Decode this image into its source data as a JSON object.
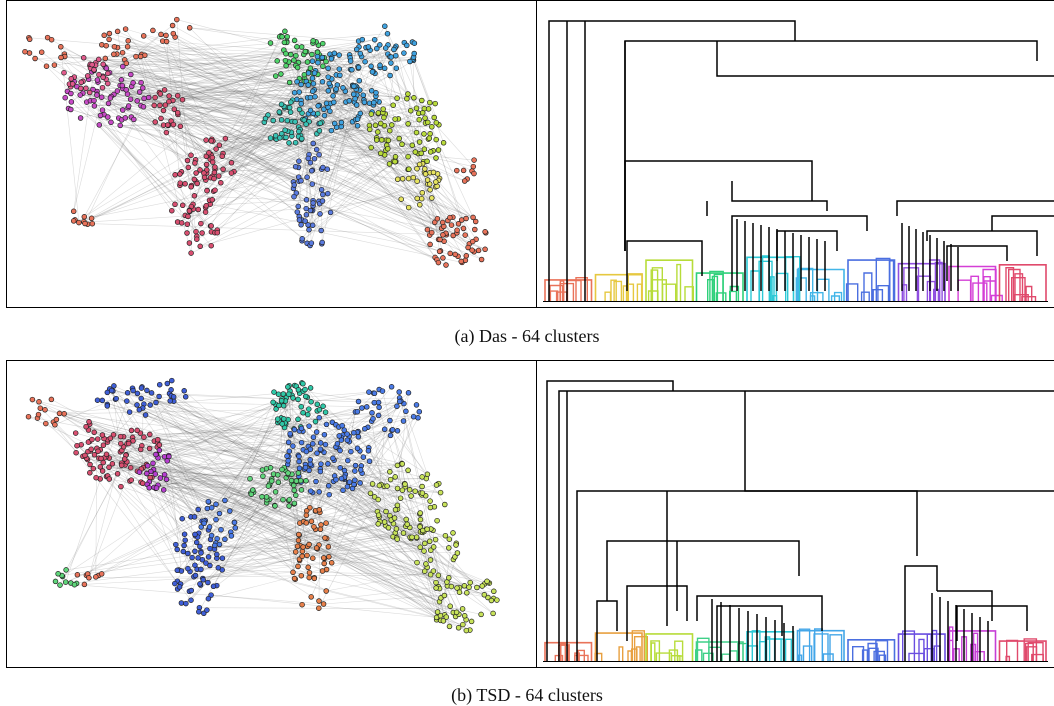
{
  "figure": {
    "panels": [
      {
        "id": "a",
        "caption": "(a)  Das - 64 clusters",
        "map_palette": [
          "#e9735a",
          "#d94f70",
          "#c74ac6",
          "#e25a8c",
          "#3fa2e0",
          "#39c3b5",
          "#4fd46a",
          "#b9db3b",
          "#e6e360",
          "#5a7be0"
        ],
        "dendrogram_colors": [
          "#e9735a",
          "#e6c840",
          "#b7dc3a",
          "#2fd07a",
          "#2cc9d6",
          "#43b6e8",
          "#4b6fe0",
          "#8f4ee0",
          "#d43fd6",
          "#e04a6c"
        ]
      },
      {
        "id": "b",
        "caption": "(b)  TSD - 64 clusters",
        "map_palette": [
          "#e9735a",
          "#d94f70",
          "#3f5fd8",
          "#4a7be8",
          "#2fc9a8",
          "#5fd57a",
          "#c8e35a",
          "#e8804a",
          "#b63ed0"
        ],
        "dendrogram_colors": [
          "#e9735a",
          "#e8a040",
          "#b7dc3a",
          "#3fd088",
          "#2cc9d6",
          "#43a6e8",
          "#4b6fe0",
          "#6a4ee0",
          "#c63fd6",
          "#e04a6c"
        ]
      }
    ]
  }
}
